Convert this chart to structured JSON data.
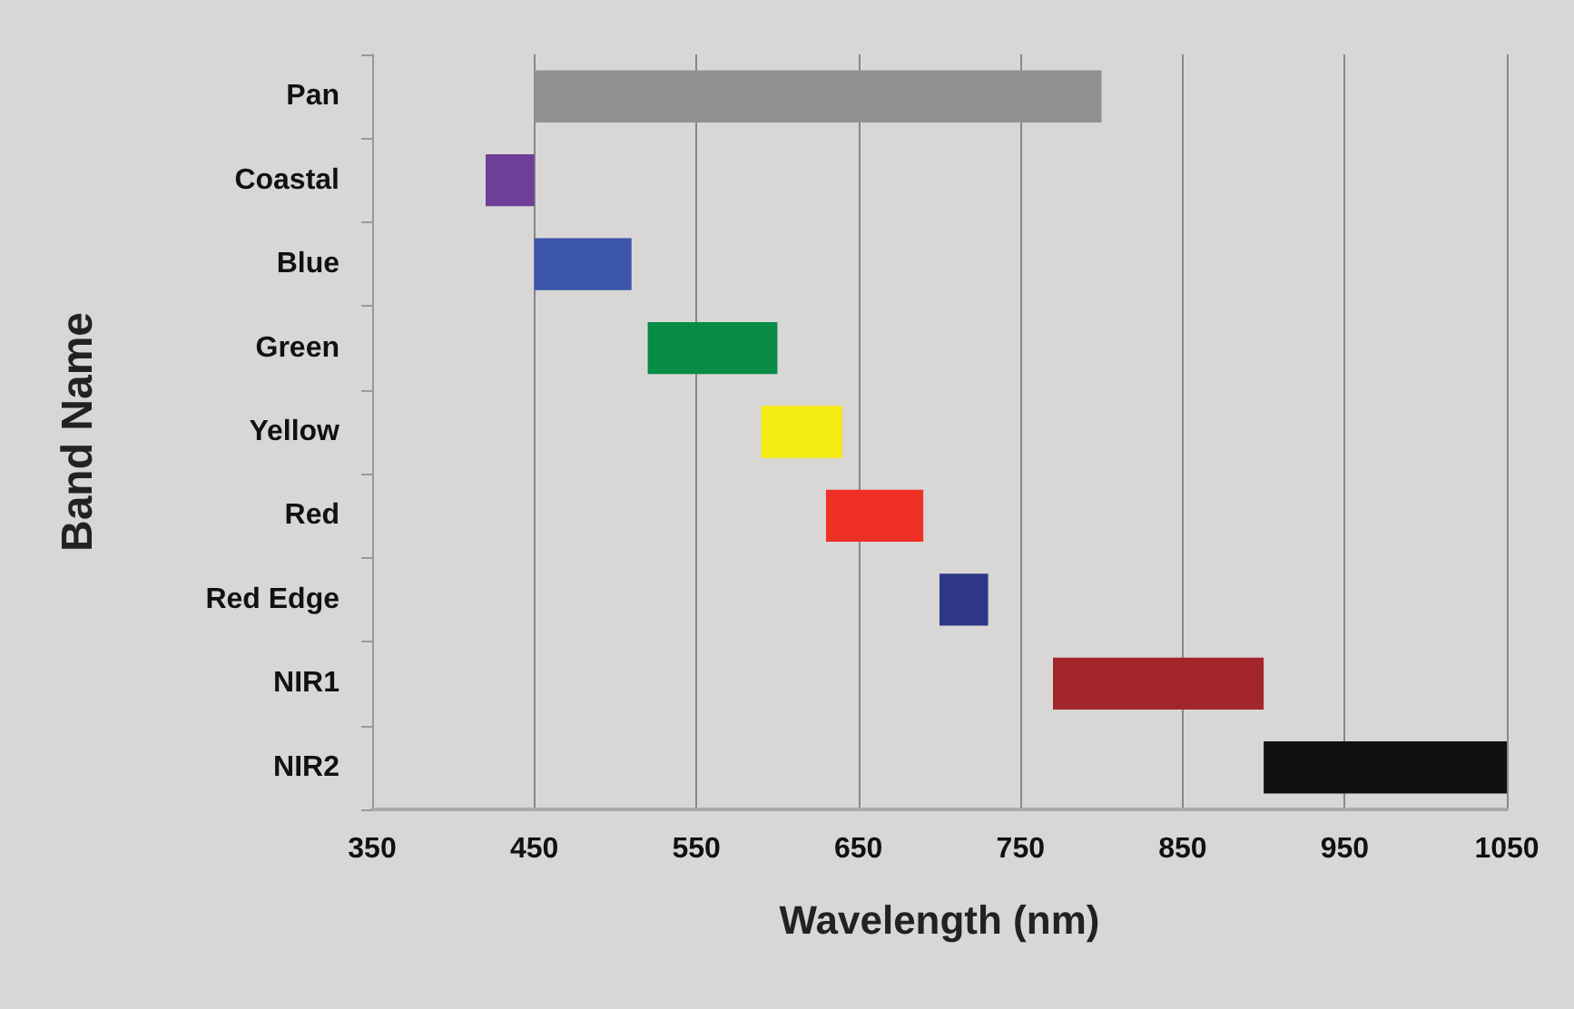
{
  "chart_data": {
    "type": "bar",
    "orientation": "horizontal",
    "xlabel": "Wavelength (nm)",
    "ylabel": "Band Name",
    "categories": [
      "Pan",
      "Coastal",
      "Blue",
      "Green",
      "Yellow",
      "Red",
      "Red Edge",
      "NIR1",
      "NIR2"
    ],
    "base": [
      450,
      420,
      450,
      520,
      590,
      630,
      700,
      770,
      900
    ],
    "values": [
      350,
      30,
      60,
      80,
      50,
      60,
      30,
      130,
      150
    ],
    "colors": [
      "#919191",
      "#6f3f98",
      "#3b55a8",
      "#088c46",
      "#f4ea14",
      "#ee3124",
      "#2e3787",
      "#a3262c",
      "#111111"
    ],
    "xlim": [
      350,
      1050
    ],
    "xticks": [
      350,
      450,
      550,
      650,
      750,
      850,
      950,
      1050
    ],
    "grid": "x"
  }
}
